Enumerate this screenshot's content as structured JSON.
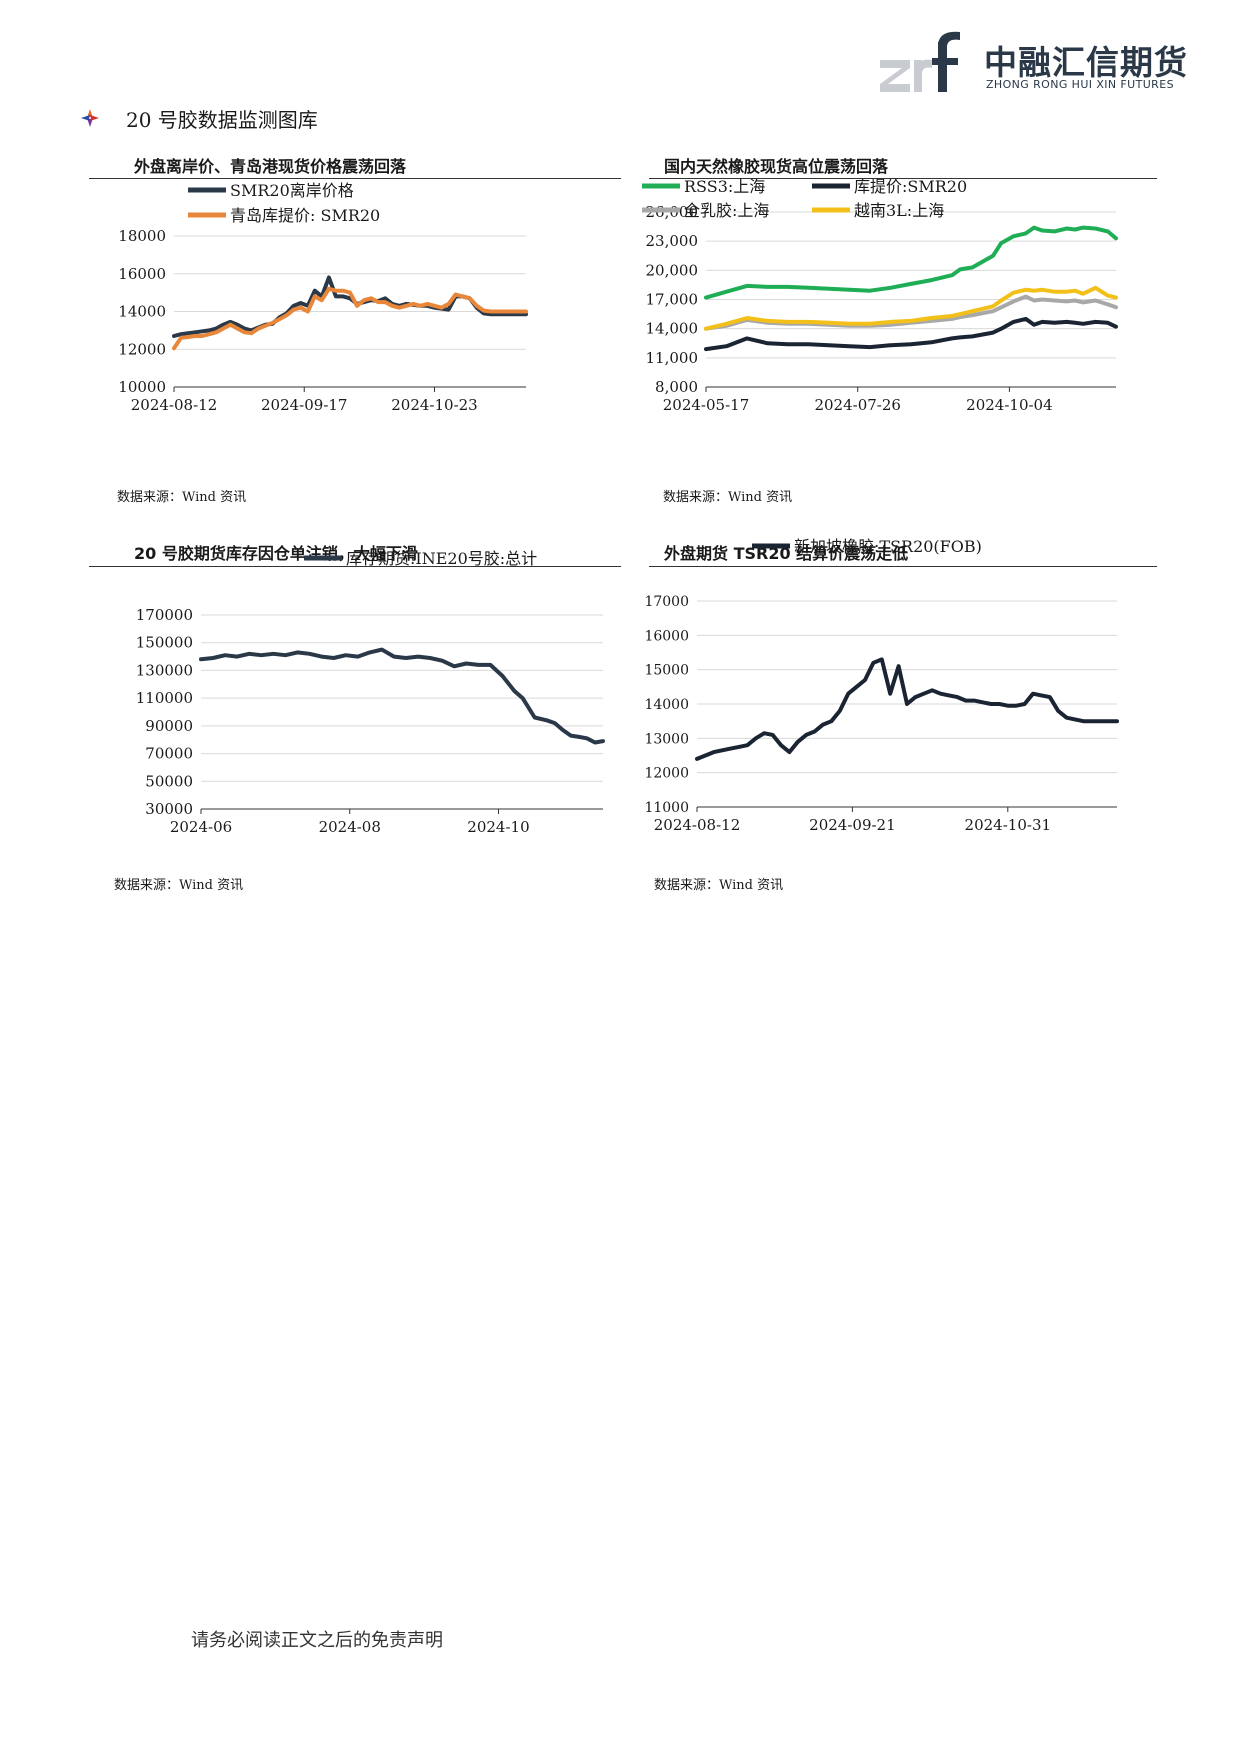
{
  "header": {
    "logo_cn": "中融汇信期货",
    "logo_en": "ZHONG RONG HUI XIN FUTURES"
  },
  "section_title": "20 号胶数据监测图库",
  "footer": "请务必阅读正文之后的免责声明",
  "source_label": "数据来源：Wind 资讯",
  "colors": {
    "navy": "#2a3848",
    "orange": "#e8873a",
    "green": "#1fae56",
    "gray": "#a8a8a8",
    "yellow": "#f2c018"
  },
  "charts": [
    {
      "title": "外盘离岸价、青岛港现货价格震荡回落",
      "chart_data": {
        "type": "line",
        "x_ticks": [
          "2024-08-12",
          "2024-09-17",
          "2024-10-23"
        ],
        "y_ticks": [
          "10000",
          "12000",
          "14000",
          "16000",
          "18000"
        ],
        "ylim": [
          10000,
          18000
        ],
        "xlim": [
          0,
          100
        ],
        "legend": "top-left",
        "series": [
          {
            "name": "SMR20离岸价格",
            "color": "#2a3848",
            "x": [
              0,
              2,
              4,
              6,
              8,
              10,
              12,
              14,
              16,
              18,
              20,
              22,
              24,
              26,
              28,
              30,
              32,
              34,
              36,
              38,
              40,
              42,
              44,
              46,
              48,
              50,
              52,
              54,
              56,
              58,
              60,
              62,
              64,
              66,
              68,
              70,
              72,
              74,
              76,
              78,
              80,
              82,
              84,
              86,
              88,
              90,
              92,
              94,
              96,
              98,
              100
            ],
            "values": [
              12700,
              12800,
              12850,
              12900,
              12950,
              13000,
              13100,
              13300,
              13450,
              13300,
              13100,
              13000,
              13150,
              13300,
              13350,
              13700,
              13900,
              14300,
              14450,
              14300,
              15100,
              14800,
              15800,
              14800,
              14800,
              14700,
              14400,
              14500,
              14600,
              14550,
              14700,
              14400,
              14300,
              14400,
              14350,
              14300,
              14300,
              14200,
              14150,
              14100,
              14800,
              14800,
              14700,
              14200,
              13900,
              13850,
              13850,
              13850,
              13850,
              13850,
              13850
            ]
          },
          {
            "name": "青岛库提价: SMR20",
            "color": "#e8873a",
            "x": [
              0,
              2,
              4,
              6,
              8,
              10,
              12,
              14,
              16,
              18,
              20,
              22,
              24,
              26,
              28,
              30,
              32,
              34,
              36,
              38,
              40,
              42,
              44,
              46,
              48,
              50,
              52,
              54,
              56,
              58,
              60,
              62,
              64,
              66,
              68,
              70,
              72,
              74,
              76,
              78,
              80,
              82,
              84,
              86,
              88,
              90,
              92,
              94,
              96,
              98,
              100
            ],
            "values": [
              12050,
              12600,
              12650,
              12700,
              12700,
              12800,
              12900,
              13100,
              13300,
              13100,
              12900,
              12850,
              13100,
              13250,
              13400,
              13600,
              13800,
              14100,
              14200,
              14000,
              14800,
              14600,
              15200,
              15100,
              15100,
              15000,
              14300,
              14600,
              14700,
              14500,
              14500,
              14300,
              14200,
              14300,
              14400,
              14300,
              14400,
              14300,
              14200,
              14400,
              14900,
              14800,
              14700,
              14300,
              14050,
              14000,
              14000,
              14000,
              14000,
              14000,
              14000
            ]
          }
        ]
      }
    },
    {
      "title": "国内天然橡胶现货高位震荡回落",
      "chart_data": {
        "type": "line",
        "x_ticks": [
          "2024-05-17",
          "2024-07-26",
          "2024-10-04"
        ],
        "y_ticks": [
          "8,000",
          "11,000",
          "14,000",
          "17,000",
          "20,000",
          "23,000",
          "26,000"
        ],
        "ylim": [
          8000,
          26000
        ],
        "xlim": [
          0,
          100
        ],
        "legend": "top",
        "series": [
          {
            "name": "RSS3:上海",
            "color": "#1fae56",
            "x": [
              0,
              5,
              10,
              15,
              20,
              25,
              30,
              35,
              40,
              45,
              50,
              55,
              60,
              62,
              65,
              70,
              72,
              75,
              78,
              80,
              82,
              85,
              88,
              90,
              92,
              95,
              98,
              100
            ],
            "values": [
              17200,
              17800,
              18400,
              18300,
              18300,
              18200,
              18100,
              18000,
              17900,
              18200,
              18600,
              19000,
              19500,
              20100,
              20300,
              21500,
              22800,
              23500,
              23800,
              24400,
              24100,
              24000,
              24300,
              24200,
              24400,
              24300,
              24000,
              23300
            ]
          },
          {
            "name": "库提价:SMR20",
            "color": "#1a2432",
            "x": [
              0,
              5,
              10,
              15,
              20,
              25,
              30,
              35,
              40,
              45,
              50,
              55,
              60,
              62,
              65,
              70,
              72,
              75,
              78,
              80,
              82,
              85,
              88,
              90,
              92,
              95,
              98,
              100
            ],
            "values": [
              11900,
              12200,
              13000,
              12500,
              12400,
              12400,
              12300,
              12200,
              12100,
              12300,
              12400,
              12600,
              13000,
              13100,
              13200,
              13600,
              14000,
              14700,
              15000,
              14400,
              14700,
              14600,
              14700,
              14600,
              14500,
              14700,
              14600,
              14200
            ]
          },
          {
            "name": "全乳胶:上海",
            "color": "#a8a8a8",
            "x": [
              0,
              5,
              10,
              15,
              20,
              25,
              30,
              35,
              40,
              45,
              50,
              55,
              60,
              62,
              65,
              70,
              72,
              75,
              78,
              80,
              82,
              85,
              88,
              90,
              92,
              95,
              98,
              100
            ],
            "values": [
              14000,
              14300,
              14900,
              14600,
              14500,
              14500,
              14400,
              14300,
              14300,
              14400,
              14600,
              14800,
              15000,
              15200,
              15400,
              15800,
              16200,
              16800,
              17300,
              16900,
              17000,
              16900,
              16800,
              16900,
              16700,
              16900,
              16500,
              16200
            ]
          },
          {
            "name": "越南3L:上海",
            "color": "#f2c018",
            "x": [
              0,
              5,
              10,
              15,
              20,
              25,
              30,
              35,
              40,
              45,
              50,
              55,
              60,
              62,
              65,
              70,
              72,
              75,
              78,
              80,
              82,
              85,
              88,
              90,
              92,
              95,
              98,
              100
            ],
            "values": [
              14000,
              14500,
              15100,
              14800,
              14700,
              14700,
              14600,
              14500,
              14500,
              14700,
              14800,
              15100,
              15300,
              15500,
              15800,
              16300,
              16900,
              17700,
              18000,
              17900,
              18000,
              17800,
              17800,
              17900,
              17600,
              18200,
              17400,
              17200
            ]
          }
        ]
      }
    },
    {
      "title": "20 号胶期货库存因仓单注销，大幅下滑",
      "chart_data": {
        "type": "line",
        "x_ticks": [
          "2024-06",
          "2024-08",
          "2024-10"
        ],
        "y_ticks": [
          "30000",
          "50000",
          "70000",
          "90000",
          "110000",
          "130000",
          "150000",
          "170000"
        ],
        "ylim": [
          30000,
          170000
        ],
        "xlim": [
          0,
          100
        ],
        "legend": "top-right",
        "series": [
          {
            "name": "库存期货:INE20号胶:总计",
            "color": "#2a3848",
            "x": [
              0,
              3,
              6,
              9,
              12,
              15,
              18,
              21,
              24,
              27,
              30,
              33,
              36,
              39,
              42,
              45,
              48,
              51,
              54,
              57,
              60,
              63,
              66,
              69,
              72,
              75,
              78,
              80,
              83,
              86,
              88,
              90,
              92,
              94,
              96,
              98,
              100
            ],
            "values": [
              138000,
              139000,
              141000,
              140000,
              142000,
              141000,
              142000,
              141000,
              143000,
              142000,
              140000,
              139000,
              141000,
              140000,
              143000,
              145000,
              140000,
              139000,
              140000,
              139000,
              137000,
              133000,
              135000,
              134000,
              134000,
              126000,
              115000,
              110000,
              96000,
              94000,
              92000,
              87000,
              83000,
              82000,
              81000,
              78000,
              79000
            ]
          }
        ]
      }
    },
    {
      "title": "外盘期货 TSR20 结算价震荡走低",
      "chart_data": {
        "type": "line",
        "x_ticks": [
          "2024-08-12",
          "2024-09-21",
          "2024-10-31"
        ],
        "y_ticks": [
          "11000",
          "12000",
          "13000",
          "14000",
          "15000",
          "16000",
          "17000"
        ],
        "ylim": [
          11000,
          17000
        ],
        "xlim": [
          0,
          100
        ],
        "legend": "top",
        "series": [
          {
            "name": "新加坡橡胶:TSR20(FOB)",
            "color": "#1a2432",
            "x": [
              0,
              2,
              4,
              6,
              8,
              10,
              12,
              14,
              16,
              18,
              20,
              22,
              24,
              26,
              28,
              30,
              32,
              34,
              36,
              38,
              40,
              42,
              44,
              46,
              48,
              50,
              52,
              54,
              56,
              58,
              60,
              62,
              64,
              66,
              68,
              70,
              72,
              74,
              76,
              78,
              80,
              82,
              84,
              86,
              88,
              90,
              92,
              94,
              96,
              98,
              100
            ],
            "values": [
              12400,
              12500,
              12600,
              12650,
              12700,
              12750,
              12800,
              13000,
              13150,
              13100,
              12800,
              12600,
              12900,
              13100,
              13200,
              13400,
              13500,
              13800,
              14300,
              14500,
              14700,
              15200,
              15300,
              14300,
              15100,
              14000,
              14200,
              14300,
              14400,
              14300,
              14250,
              14200,
              14100,
              14100,
              14050,
              14000,
              14000,
              13950,
              13950,
              14000,
              14300,
              14250,
              14200,
              13800,
              13600,
              13550,
              13500,
              13500,
              13500,
              13500,
              13500
            ]
          }
        ]
      }
    }
  ]
}
